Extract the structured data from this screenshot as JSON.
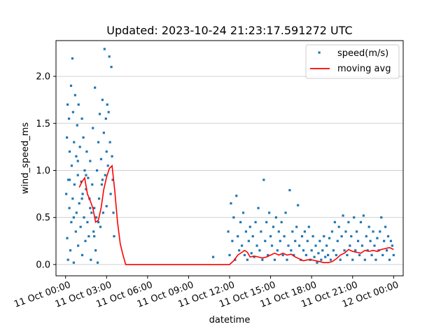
{
  "chart_data": {
    "type": "scatter",
    "title": "Updated: 2023-10-24 21:23:17.591272 UTC",
    "xlabel": "datetime",
    "ylabel": "wind_speed_ms",
    "xlim_hours": [
      -0.7,
      24.7
    ],
    "ylim": [
      -0.12,
      2.38
    ],
    "x_ticks": [
      {
        "hour": 0,
        "label": "11 Oct 00:00"
      },
      {
        "hour": 3,
        "label": "11 Oct 03:00"
      },
      {
        "hour": 6,
        "label": "11 Oct 06:00"
      },
      {
        "hour": 9,
        "label": "11 Oct 09:00"
      },
      {
        "hour": 12,
        "label": "11 Oct 12:00"
      },
      {
        "hour": 15,
        "label": "11 Oct 15:00"
      },
      {
        "hour": 18,
        "label": "11 Oct 18:00"
      },
      {
        "hour": 21,
        "label": "11 Oct 21:00"
      },
      {
        "hour": 24,
        "label": "12 Oct 00:00"
      }
    ],
    "y_ticks": [
      {
        "value": 0.0,
        "label": "0.0"
      },
      {
        "value": 0.5,
        "label": "0.5"
      },
      {
        "value": 1.0,
        "label": "1.0"
      },
      {
        "value": 1.5,
        "label": "1.5"
      },
      {
        "value": 2.0,
        "label": "2.0"
      }
    ],
    "grid": "horizontal",
    "legend_position": "top-right",
    "series": [
      {
        "name": "speed(m/s)",
        "kind": "scatter",
        "color": "#1f77b4",
        "points": [
          [
            0.05,
            0.75
          ],
          [
            0.1,
            1.35
          ],
          [
            0.12,
            0.28
          ],
          [
            0.15,
            1.7
          ],
          [
            0.18,
            0.05
          ],
          [
            0.2,
            0.9
          ],
          [
            0.25,
            1.55
          ],
          [
            0.28,
            0.6
          ],
          [
            0.3,
            1.2
          ],
          [
            0.35,
            0.15
          ],
          [
            0.4,
            1.9
          ],
          [
            0.42,
            0.45
          ],
          [
            0.45,
            1.05
          ],
          [
            0.5,
            2.19
          ],
          [
            0.52,
            0.7
          ],
          [
            0.55,
            1.62
          ],
          [
            0.6,
            0.02
          ],
          [
            0.62,
            1.3
          ],
          [
            0.65,
            0.85
          ],
          [
            0.7,
            1.8
          ],
          [
            0.75,
            0.35
          ],
          [
            0.78,
            1.15
          ],
          [
            0.8,
            0.55
          ],
          [
            0.85,
            1.48
          ],
          [
            0.9,
            0.95
          ],
          [
            0.92,
            0.2
          ],
          [
            0.95,
            1.7
          ],
          [
            1.0,
            0.65
          ],
          [
            1.05,
            1.25
          ],
          [
            1.1,
            0.4
          ],
          [
            1.15,
            0.88
          ],
          [
            1.2,
            1.55
          ],
          [
            1.22,
            0.1
          ],
          [
            1.25,
            0.75
          ],
          [
            1.3,
            1.35
          ],
          [
            1.35,
            0.5
          ],
          [
            1.4,
            1.0
          ],
          [
            1.45,
            0.25
          ],
          [
            1.5,
            0.8
          ],
          [
            1.55,
            1.2
          ],
          [
            1.6,
            0.45
          ],
          [
            1.65,
            0.92
          ],
          [
            1.7,
            0.3
          ],
          [
            1.75,
            0.7
          ],
          [
            1.8,
            1.1
          ],
          [
            1.85,
            0.05
          ],
          [
            1.9,
            0.55
          ],
          [
            1.95,
            0.85
          ],
          [
            2.0,
            1.45
          ],
          [
            2.05,
            0.35
          ],
          [
            2.1,
            0.6
          ],
          [
            2.15,
            1.88
          ],
          [
            2.2,
            0.15
          ],
          [
            2.25,
            0.5
          ],
          [
            2.3,
            1.0
          ],
          [
            2.35,
            0.02
          ],
          [
            2.4,
            1.3
          ],
          [
            2.45,
            0.7
          ],
          [
            2.5,
            1.6
          ],
          [
            2.55,
            0.4
          ],
          [
            2.6,
            1.12
          ],
          [
            2.65,
            0.85
          ],
          [
            2.7,
            1.75
          ],
          [
            2.75,
            0.55
          ],
          [
            2.8,
            1.4
          ],
          [
            2.85,
            2.29
          ],
          [
            2.9,
            0.95
          ],
          [
            2.95,
            1.55
          ],
          [
            3.0,
            0.62
          ],
          [
            3.05,
            1.7
          ],
          [
            3.1,
            1.05
          ],
          [
            3.15,
            1.62
          ],
          [
            3.2,
            2.21
          ],
          [
            3.25,
            1.3
          ],
          [
            3.3,
            0.75
          ],
          [
            3.35,
            2.1
          ],
          [
            3.4,
            1.15
          ],
          [
            3.45,
            0.9
          ],
          [
            3.5,
            0.55
          ],
          [
            3.55,
            0.3
          ],
          [
            0.3,
            0.9
          ],
          [
            0.6,
            0.5
          ],
          [
            0.9,
            1.1
          ],
          [
            1.2,
            0.7
          ],
          [
            1.5,
            0.95
          ],
          [
            1.8,
            0.6
          ],
          [
            2.1,
            0.3
          ],
          [
            2.4,
            0.45
          ],
          [
            2.7,
            0.9
          ],
          [
            3.0,
            1.2
          ],
          [
            10.8,
            0.08
          ],
          [
            11.9,
            0.35
          ],
          [
            12.0,
            0.1
          ],
          [
            12.1,
            0.65
          ],
          [
            12.2,
            0.25
          ],
          [
            12.3,
            0.5
          ],
          [
            12.4,
            0.05
          ],
          [
            12.5,
            0.73
          ],
          [
            12.6,
            0.3
          ],
          [
            12.7,
            0.15
          ],
          [
            12.8,
            0.45
          ],
          [
            12.9,
            0.2
          ],
          [
            13.0,
            0.55
          ],
          [
            13.1,
            0.1
          ],
          [
            13.2,
            0.35
          ],
          [
            13.3,
            0.05
          ],
          [
            13.4,
            0.25
          ],
          [
            13.5,
            0.4
          ],
          [
            13.6,
            0.12
          ],
          [
            13.7,
            0.3
          ],
          [
            13.8,
            0.08
          ],
          [
            13.9,
            0.45
          ],
          [
            14.0,
            0.2
          ],
          [
            14.1,
            0.6
          ],
          [
            14.2,
            0.15
          ],
          [
            14.3,
            0.35
          ],
          [
            14.4,
            0.05
          ],
          [
            14.5,
            0.9
          ],
          [
            14.6,
            0.25
          ],
          [
            14.7,
            0.45
          ],
          [
            14.8,
            0.1
          ],
          [
            14.9,
            0.55
          ],
          [
            15.0,
            0.3
          ],
          [
            15.1,
            0.2
          ],
          [
            15.2,
            0.4
          ],
          [
            15.3,
            0.05
          ],
          [
            15.4,
            0.5
          ],
          [
            15.5,
            0.15
          ],
          [
            15.6,
            0.35
          ],
          [
            15.7,
            0.25
          ],
          [
            15.8,
            0.45
          ],
          [
            15.9,
            0.1
          ],
          [
            16.0,
            0.3
          ],
          [
            16.1,
            0.55
          ],
          [
            16.2,
            0.05
          ],
          [
            16.3,
            0.2
          ],
          [
            16.4,
            0.79
          ],
          [
            16.5,
            0.15
          ],
          [
            16.6,
            0.35
          ],
          [
            16.7,
            0.1
          ],
          [
            16.8,
            0.25
          ],
          [
            16.9,
            0.4
          ],
          [
            17.0,
            0.63
          ],
          [
            17.1,
            0.2
          ],
          [
            17.2,
            0.05
          ],
          [
            17.3,
            0.3
          ],
          [
            17.4,
            0.15
          ],
          [
            17.5,
            0.35
          ],
          [
            17.6,
            0.1
          ],
          [
            17.7,
            0.25
          ],
          [
            17.8,
            0.4
          ],
          [
            17.9,
            0.05
          ],
          [
            18.0,
            0.15
          ],
          [
            18.1,
            0.3
          ],
          [
            18.2,
            0.08
          ],
          [
            18.3,
            0.2
          ],
          [
            18.4,
            0.02
          ],
          [
            18.5,
            0.12
          ],
          [
            18.6,
            0.25
          ],
          [
            18.7,
            0.05
          ],
          [
            18.8,
            0.15
          ],
          [
            18.9,
            0.3
          ],
          [
            19.0,
            0.08
          ],
          [
            19.1,
            0.2
          ],
          [
            19.2,
            0.1
          ],
          [
            19.3,
            0.28
          ],
          [
            19.4,
            0.05
          ],
          [
            19.5,
            0.35
          ],
          [
            19.6,
            0.15
          ],
          [
            19.7,
            0.45
          ],
          [
            19.8,
            0.1
          ],
          [
            19.9,
            0.25
          ],
          [
            20.0,
            0.4
          ],
          [
            20.1,
            0.05
          ],
          [
            20.2,
            0.3
          ],
          [
            20.3,
            0.52
          ],
          [
            20.4,
            0.15
          ],
          [
            20.5,
            0.35
          ],
          [
            20.6,
            0.1
          ],
          [
            20.7,
            0.45
          ],
          [
            20.8,
            0.2
          ],
          [
            20.9,
            0.3
          ],
          [
            21.0,
            0.05
          ],
          [
            21.1,
            0.5
          ],
          [
            21.2,
            0.15
          ],
          [
            21.3,
            0.35
          ],
          [
            21.4,
            0.25
          ],
          [
            21.5,
            0.1
          ],
          [
            21.6,
            0.45
          ],
          [
            21.7,
            0.2
          ],
          [
            21.8,
            0.52
          ],
          [
            21.9,
            0.05
          ],
          [
            22.0,
            0.3
          ],
          [
            22.1,
            0.15
          ],
          [
            22.2,
            0.4
          ],
          [
            22.3,
            0.25
          ],
          [
            22.4,
            0.1
          ],
          [
            22.5,
            0.35
          ],
          [
            22.6,
            0.2
          ],
          [
            22.7,
            0.05
          ],
          [
            22.8,
            0.28
          ],
          [
            22.9,
            0.15
          ],
          [
            23.0,
            0.35
          ],
          [
            23.1,
            0.5
          ],
          [
            23.2,
            0.1
          ],
          [
            23.3,
            0.25
          ],
          [
            23.4,
            0.4
          ],
          [
            23.5,
            0.15
          ],
          [
            23.6,
            0.3
          ],
          [
            23.7,
            0.05
          ],
          [
            23.8,
            0.25
          ],
          [
            23.9,
            0.2
          ],
          [
            24.0,
            0.1
          ]
        ]
      },
      {
        "name": "moving avg",
        "kind": "line",
        "color": "#ff0000",
        "points": [
          [
            1.0,
            0.82
          ],
          [
            1.2,
            0.88
          ],
          [
            1.4,
            0.92
          ],
          [
            1.6,
            0.75
          ],
          [
            1.8,
            0.68
          ],
          [
            2.0,
            0.6
          ],
          [
            2.2,
            0.45
          ],
          [
            2.4,
            0.47
          ],
          [
            2.6,
            0.6
          ],
          [
            2.8,
            0.8
          ],
          [
            3.0,
            0.93
          ],
          [
            3.2,
            1.02
          ],
          [
            3.4,
            1.05
          ],
          [
            3.6,
            0.78
          ],
          [
            3.8,
            0.45
          ],
          [
            4.0,
            0.22
          ],
          [
            4.2,
            0.1
          ],
          [
            4.4,
            0.0
          ],
          [
            6.0,
            0.0
          ],
          [
            8.0,
            0.0
          ],
          [
            10.0,
            0.0
          ],
          [
            12.0,
            0.0
          ],
          [
            12.3,
            0.04
          ],
          [
            12.6,
            0.1
          ],
          [
            12.9,
            0.13
          ],
          [
            13.1,
            0.15
          ],
          [
            13.3,
            0.13
          ],
          [
            13.5,
            0.08
          ],
          [
            13.8,
            0.09
          ],
          [
            14.1,
            0.08
          ],
          [
            14.4,
            0.07
          ],
          [
            14.7,
            0.08
          ],
          [
            15.0,
            0.1
          ],
          [
            15.3,
            0.12
          ],
          [
            15.6,
            0.1
          ],
          [
            15.9,
            0.12
          ],
          [
            16.2,
            0.1
          ],
          [
            16.5,
            0.11
          ],
          [
            16.8,
            0.08
          ],
          [
            17.1,
            0.06
          ],
          [
            17.4,
            0.04
          ],
          [
            17.7,
            0.05
          ],
          [
            18.0,
            0.05
          ],
          [
            18.3,
            0.04
          ],
          [
            18.6,
            0.03
          ],
          [
            18.9,
            0.02
          ],
          [
            19.2,
            0.02
          ],
          [
            19.5,
            0.03
          ],
          [
            19.8,
            0.06
          ],
          [
            20.1,
            0.1
          ],
          [
            20.4,
            0.12
          ],
          [
            20.7,
            0.16
          ],
          [
            21.0,
            0.14
          ],
          [
            21.3,
            0.13
          ],
          [
            21.6,
            0.12
          ],
          [
            21.9,
            0.15
          ],
          [
            22.2,
            0.14
          ],
          [
            22.5,
            0.15
          ],
          [
            22.8,
            0.14
          ],
          [
            23.1,
            0.16
          ],
          [
            23.4,
            0.17
          ],
          [
            23.7,
            0.18
          ],
          [
            24.0,
            0.16
          ]
        ]
      }
    ]
  }
}
